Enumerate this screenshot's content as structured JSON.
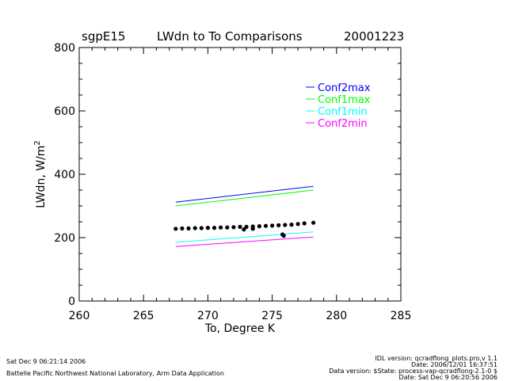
{
  "header": {
    "site": "sgpE15",
    "title": "LWdn to To Comparisons",
    "date": "20001223"
  },
  "footer": {
    "left_line1": "Sat Dec  9 06:21:14 2006",
    "left_line2": "Battelle Pacific Northwest National Laboratory, Arm Data Application",
    "right_line1": "IDL version: qcradflong_plots.pro,v 1.1",
    "right_line2": "Date: 2006/12/01 16:37:51",
    "right_line3": "Data version: $State: process-vap-qcradflong-2.1-0 $",
    "right_line4": "Date: Sat Dec  9 06:20:56 2006"
  },
  "chart_data": {
    "type": "line",
    "xlabel": "To, Degree K",
    "ylabel": "LWdn, W/m",
    "ylabel_sup": "2",
    "xlim": [
      260,
      285
    ],
    "ylim": [
      0,
      800
    ],
    "xticks": [
      260,
      265,
      270,
      275,
      280,
      285
    ],
    "yticks": [
      0,
      200,
      400,
      600,
      800
    ],
    "grid": false,
    "legend_position": "top-right",
    "series": [
      {
        "name": "Conf2max",
        "color": "#0000ff",
        "x": [
          267.5,
          278.2
        ],
        "y": [
          312,
          362
        ]
      },
      {
        "name": "Conf1max",
        "color": "#00ff00",
        "x": [
          267.5,
          278.2
        ],
        "y": [
          300,
          350
        ]
      },
      {
        "name": "Conf1min",
        "color": "#00ffff",
        "x": [
          267.5,
          278.2
        ],
        "y": [
          185,
          218
        ]
      },
      {
        "name": "Conf2min",
        "color": "#ff00ff",
        "x": [
          267.5,
          278.2
        ],
        "y": [
          172,
          202
        ]
      }
    ],
    "observations": {
      "color": "#000000",
      "points": [
        [
          267.5,
          228
        ],
        [
          268.0,
          229
        ],
        [
          268.5,
          229
        ],
        [
          269.0,
          230
        ],
        [
          269.5,
          230
        ],
        [
          270.0,
          231
        ],
        [
          270.5,
          231
        ],
        [
          271.0,
          232
        ],
        [
          271.5,
          232
        ],
        [
          272.0,
          233
        ],
        [
          272.5,
          234
        ],
        [
          273.0,
          234
        ],
        [
          273.5,
          235
        ],
        [
          274.0,
          236
        ],
        [
          274.5,
          237
        ],
        [
          275.0,
          238
        ],
        [
          275.5,
          239
        ],
        [
          276.0,
          240
        ],
        [
          276.5,
          241
        ],
        [
          277.0,
          243
        ],
        [
          277.5,
          245
        ],
        [
          278.2,
          247
        ],
        [
          272.8,
          226
        ],
        [
          273.5,
          228
        ],
        [
          275.8,
          210
        ],
        [
          275.9,
          206
        ]
      ]
    }
  }
}
